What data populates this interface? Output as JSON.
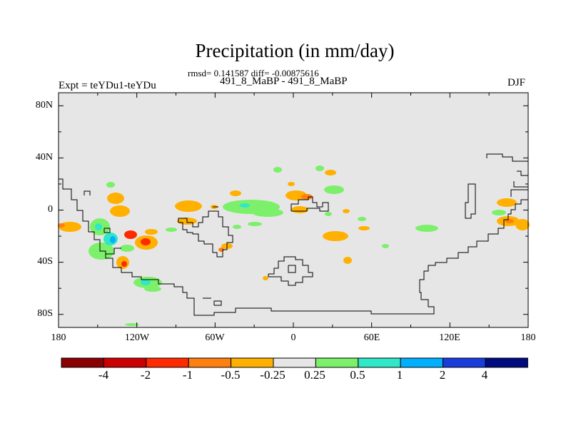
{
  "title": "Precipitation (in mm/day)",
  "stats": "rmsd= 0.141587 diff= -0.00875616",
  "period": "491_8_MaBP - 491_8_MaBP",
  "expt_label": "Expt = teYDu1-teYDu",
  "season": "DJF",
  "lat_labels": [
    "80N",
    "40N",
    "0",
    "40S",
    "80S"
  ],
  "lon_labels": [
    "180",
    "120W",
    "60W",
    "0",
    "60E",
    "120E",
    "180"
  ],
  "colorbar": {
    "labels": [
      "-4",
      "-2",
      "-1",
      "-0.5",
      "-0.25",
      "0.25",
      "0.5",
      "1",
      "2",
      "4"
    ],
    "colors": [
      "#8b0000",
      "#cc0000",
      "#ff2a00",
      "#ff7f11",
      "#ffb000",
      "#e6e6e6",
      "#7cf06a",
      "#2fe8c8",
      "#00b0ff",
      "#1a3cdc",
      "#000b80"
    ]
  },
  "colors": {
    "background": "#e6e6e6",
    "orange": "#ffb000",
    "dark_orange": "#ff7f11",
    "red": "#ff2a00",
    "green": "#7cf06a",
    "cyan": "#2fe8c8",
    "blue": "#00b0ff"
  }
}
